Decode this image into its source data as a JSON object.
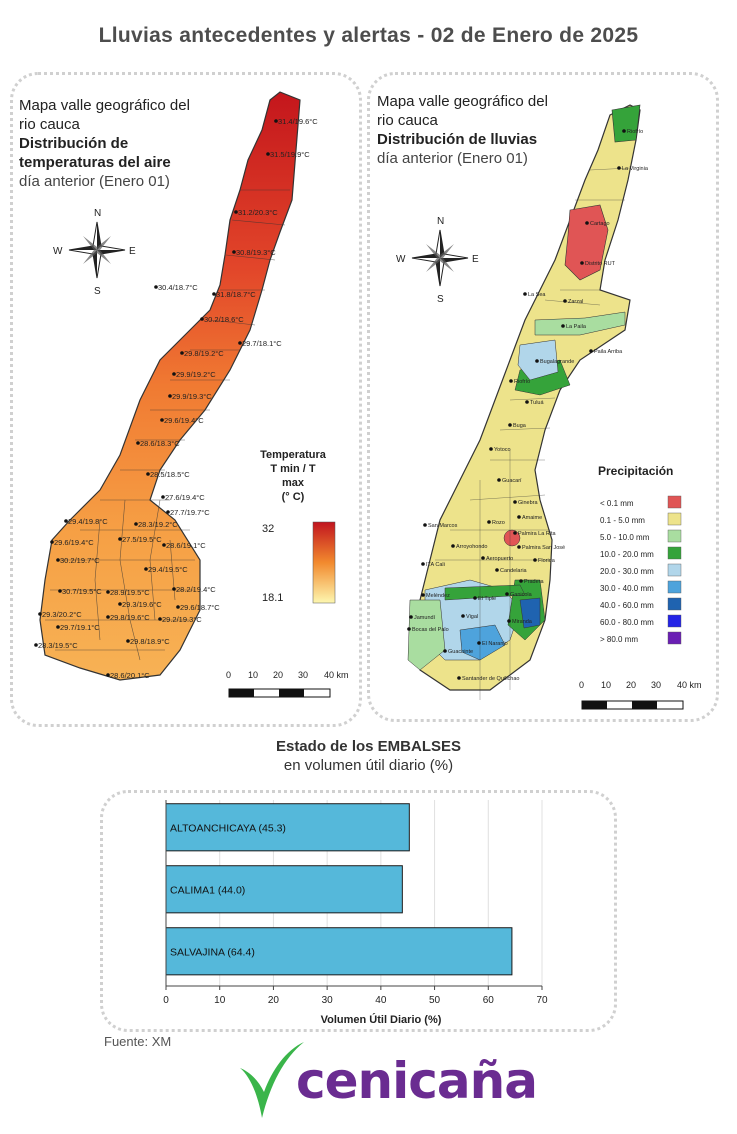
{
  "title": "Lluvias antecedentes y alertas - 02 de Enero de 2025",
  "temp_map": {
    "line1": "Mapa valle geográfico del",
    "line2": "rio cauca",
    "line3": "Distribución de",
    "line4": "temperaturas del aire",
    "line5": "día anterior (Enero 01)",
    "legend_title_1": "Temperatura",
    "legend_title_2": "T min / T max",
    "legend_title_3": "(° C)",
    "legend_max": "32",
    "legend_min": "18.1",
    "labels": [
      "31.4/19.6°C",
      "31.5/19.9°C",
      "31.2/20.3°C",
      "30.8/19.3°C",
      "30.4/18.7°C",
      "31.8/18.7°C",
      "30.2/18.6°C",
      "29.7/18.1°C",
      "29.8/19.2°C",
      "29.9/19.2°C",
      "29.9/19.3°C",
      "29.6/19.4°C",
      "28.6/18.3°C",
      "28.5/18.5°C",
      "27.6/19.4°C",
      "27.7/19.7°C",
      "29.4/19.8°C",
      "28.3/19.2°C",
      "27.5/19.5°C",
      "28.6/19.1°C",
      "29.6/19.4°C",
      "30.2/19.7°C",
      "29.4/19.5°C",
      "28.2/19.4°C",
      "30.7/19.5°C",
      "28.9/19.5°C",
      "29.3/19.6°C",
      "29.6/18.7°C",
      "29.3/20.2°C",
      "29.7/19.1°C",
      "29.8/19.6°C",
      "29.2/19.3°C",
      "28.3/19.5°C",
      "29.8/18.9°C",
      "28.6/20.1°C"
    ],
    "scale": [
      "0",
      "10",
      "20",
      "30",
      "40 km"
    ]
  },
  "rain_map": {
    "line1": "Mapa valle geográfico del",
    "line2": "rio cauca",
    "line3": "Distribución de lluvias",
    "line4": "día anterior (Enero  01)",
    "legend_title": "Precipitación",
    "legend": [
      {
        "label": "< 0.1 mm",
        "color": "#e05555"
      },
      {
        "label": "0.1 - 5.0 mm",
        "color": "#ede38b"
      },
      {
        "label": "5.0 - 10.0 mm",
        "color": "#a9dda0"
      },
      {
        "label": "10.0 - 20.0 mm",
        "color": "#35a33a"
      },
      {
        "label": "20.0 - 30.0 mm",
        "color": "#b1d6ea"
      },
      {
        "label": "30.0 - 40.0 mm",
        "color": "#4ea3dc"
      },
      {
        "label": "40.0 - 60.0 mm",
        "color": "#1f63b0"
      },
      {
        "label": "60.0 - 80.0 mm",
        "color": "#2424e6"
      },
      {
        "label": "> 80.0 mm",
        "color": "#6a1fb4"
      }
    ],
    "places": [
      "Riofrío",
      "La Virginia",
      "Cartago",
      "Distrito RUT",
      "La Sea",
      "Zarzal",
      "La Paila",
      "Bugalagrande",
      "Paila Arriba",
      "Riofrío",
      "Tuluá",
      "Buga",
      "Yotoco",
      "Guacarí",
      "Ginebra",
      "Amaime",
      "San Marcos",
      "Rozo",
      "Palmira La Rita",
      "Arroyohondo",
      "Palmira San José",
      "ITA Cali",
      "Aeropuerto",
      "Florida",
      "Candelaria",
      "Pradera",
      "Meléndez",
      "El Tiple",
      "Ganicola",
      "Jamundí",
      "Bocas del Palo",
      "Vigal",
      "El Naranjo",
      "Miranda",
      "Guachinte",
      "Santander de Quilichao"
    ],
    "scale": [
      "0",
      "10",
      "20",
      "30",
      "40 km"
    ]
  },
  "reservoirs": {
    "title_1": "Estado de los EMBALSES",
    "title_2": "en volumen útil diario (%)",
    "xlabel": "Volumen Útil Diario (%)",
    "ticks": [
      "0",
      "10",
      "20",
      "30",
      "40",
      "50",
      "60",
      "70"
    ]
  },
  "chart_data": {
    "type": "bar",
    "orientation": "horizontal",
    "categories": [
      "ALTOANCHICAYA (45.3)",
      "CALIMA1 (44.0)",
      "SALVAJINA (64.4)"
    ],
    "values": [
      45.3,
      44.0,
      64.4
    ],
    "xlabel": "Volumen Útil Diario (%)",
    "xlim": [
      0,
      70
    ],
    "bar_color": "#55b8da"
  },
  "fuente": "Fuente: XM",
  "logo_text": "cenicaña"
}
